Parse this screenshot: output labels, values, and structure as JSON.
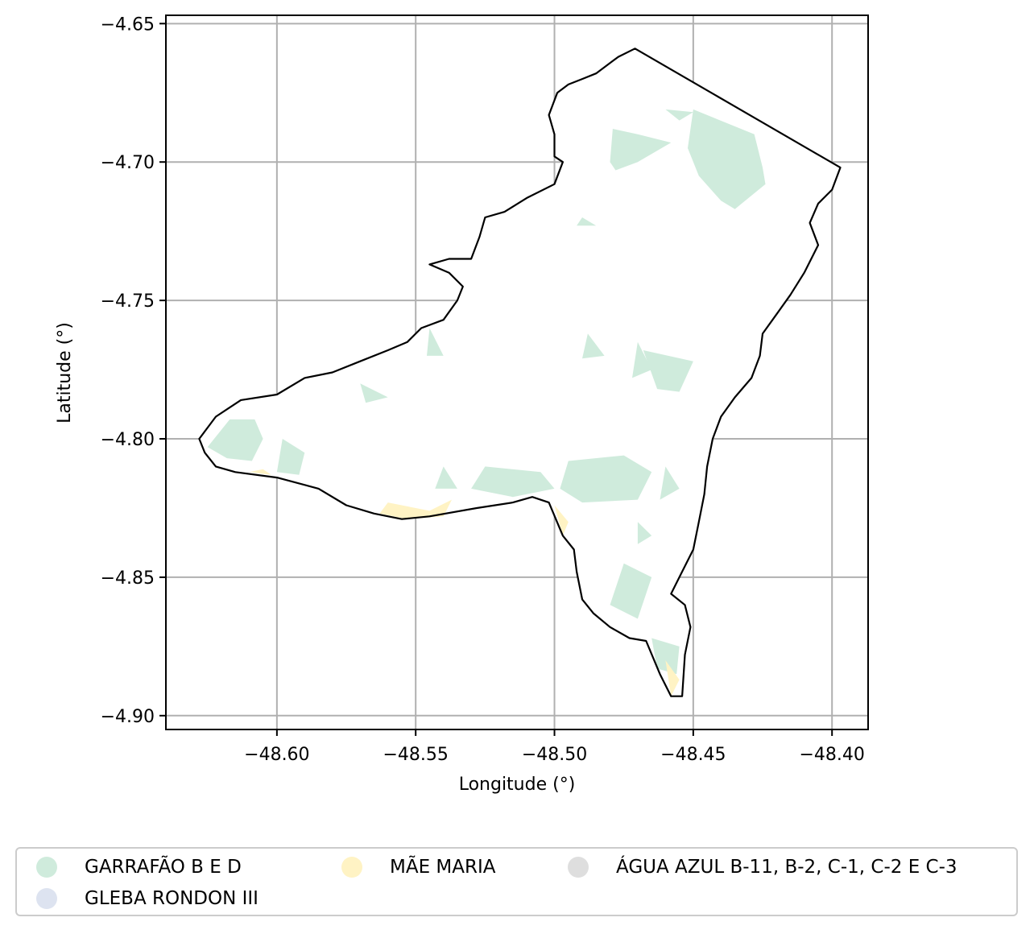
{
  "chart_data": {
    "type": "map",
    "xlabel": "Longitude (°)",
    "ylabel": "Latitude (°)",
    "xlim": [
      -48.64,
      -48.387
    ],
    "ylim": [
      -4.905,
      -4.647
    ],
    "grid": true,
    "x_ticks": [
      {
        "value": -48.6,
        "label": "−48.60"
      },
      {
        "value": -48.55,
        "label": "−48.55"
      },
      {
        "value": -48.5,
        "label": "−48.50"
      },
      {
        "value": -48.45,
        "label": "−48.45"
      },
      {
        "value": -48.4,
        "label": "−48.40"
      }
    ],
    "y_ticks": [
      {
        "value": -4.65,
        "label": "−4.65"
      },
      {
        "value": -4.7,
        "label": "−4.70"
      },
      {
        "value": -4.75,
        "label": "−4.75"
      },
      {
        "value": -4.8,
        "label": "−4.80"
      },
      {
        "value": -4.85,
        "label": "−4.85"
      },
      {
        "value": -4.9,
        "label": "−4.90"
      }
    ],
    "boundary": [
      [
        -48.628,
        -4.8
      ],
      [
        -48.622,
        -4.792
      ],
      [
        -48.613,
        -4.786
      ],
      [
        -48.6,
        -4.784
      ],
      [
        -48.59,
        -4.778
      ],
      [
        -48.58,
        -4.776
      ],
      [
        -48.57,
        -4.772
      ],
      [
        -48.56,
        -4.768
      ],
      [
        -48.553,
        -4.765
      ],
      [
        -48.548,
        -4.76
      ],
      [
        -48.54,
        -4.757
      ],
      [
        -48.535,
        -4.75
      ],
      [
        -48.533,
        -4.745
      ],
      [
        -48.538,
        -4.74
      ],
      [
        -48.545,
        -4.737
      ],
      [
        -48.538,
        -4.735
      ],
      [
        -48.53,
        -4.735
      ],
      [
        -48.527,
        -4.727
      ],
      [
        -48.525,
        -4.72
      ],
      [
        -48.518,
        -4.718
      ],
      [
        -48.51,
        -4.713
      ],
      [
        -48.5,
        -4.708
      ],
      [
        -48.497,
        -4.7
      ],
      [
        -48.5,
        -4.698
      ],
      [
        -48.5,
        -4.69
      ],
      [
        -48.502,
        -4.683
      ],
      [
        -48.499,
        -4.675
      ],
      [
        -48.495,
        -4.672
      ],
      [
        -48.49,
        -4.67
      ],
      [
        -48.485,
        -4.668
      ],
      [
        -48.481,
        -4.665
      ],
      [
        -48.477,
        -4.662
      ],
      [
        -48.471,
        -4.659
      ],
      [
        -48.397,
        -4.702
      ],
      [
        -48.4,
        -4.71
      ],
      [
        -48.405,
        -4.715
      ],
      [
        -48.408,
        -4.722
      ],
      [
        -48.405,
        -4.73
      ],
      [
        -48.41,
        -4.74
      ],
      [
        -48.415,
        -4.748
      ],
      [
        -48.42,
        -4.755
      ],
      [
        -48.425,
        -4.762
      ],
      [
        -48.426,
        -4.77
      ],
      [
        -48.429,
        -4.778
      ],
      [
        -48.435,
        -4.785
      ],
      [
        -48.44,
        -4.792
      ],
      [
        -48.443,
        -4.8
      ],
      [
        -48.445,
        -4.81
      ],
      [
        -48.446,
        -4.82
      ],
      [
        -48.448,
        -4.83
      ],
      [
        -48.45,
        -4.84
      ],
      [
        -48.455,
        -4.85
      ],
      [
        -48.458,
        -4.856
      ],
      [
        -48.453,
        -4.86
      ],
      [
        -48.451,
        -4.868
      ],
      [
        -48.453,
        -4.878
      ],
      [
        -48.454,
        -4.893
      ],
      [
        -48.458,
        -4.893
      ],
      [
        -48.462,
        -4.885
      ],
      [
        -48.467,
        -4.873
      ],
      [
        -48.473,
        -4.872
      ],
      [
        -48.48,
        -4.868
      ],
      [
        -48.486,
        -4.863
      ],
      [
        -48.49,
        -4.858
      ],
      [
        -48.492,
        -4.848
      ],
      [
        -48.493,
        -4.84
      ],
      [
        -48.497,
        -4.835
      ],
      [
        -48.502,
        -4.823
      ],
      [
        -48.508,
        -4.821
      ],
      [
        -48.515,
        -4.823
      ],
      [
        -48.528,
        -4.825
      ],
      [
        -48.545,
        -4.828
      ],
      [
        -48.555,
        -4.829
      ],
      [
        -48.565,
        -4.827
      ],
      [
        -48.575,
        -4.824
      ],
      [
        -48.585,
        -4.818
      ],
      [
        -48.6,
        -4.814
      ],
      [
        -48.615,
        -4.812
      ],
      [
        -48.622,
        -4.81
      ],
      [
        -48.626,
        -4.805
      ]
    ],
    "regions": [
      {
        "name": "GARRAFÃO B E D",
        "color": "#cfebdc",
        "polygons": [
          [
            [
              -48.45,
              -4.681
            ],
            [
              -48.428,
              -4.69
            ],
            [
              -48.425,
              -4.702
            ],
            [
              -48.424,
              -4.708
            ],
            [
              -48.435,
              -4.717
            ],
            [
              -48.44,
              -4.714
            ],
            [
              -48.448,
              -4.705
            ],
            [
              -48.452,
              -4.695
            ]
          ],
          [
            [
              -48.479,
              -4.688
            ],
            [
              -48.47,
              -4.69
            ],
            [
              -48.458,
              -4.693
            ],
            [
              -48.47,
              -4.7
            ],
            [
              -48.478,
              -4.703
            ],
            [
              -48.48,
              -4.7
            ]
          ],
          [
            [
              -48.46,
              -4.681
            ],
            [
              -48.455,
              -4.685
            ],
            [
              -48.45,
              -4.682
            ]
          ],
          [
            [
              -48.617,
              -4.793
            ],
            [
              -48.608,
              -4.793
            ],
            [
              -48.605,
              -4.8
            ],
            [
              -48.609,
              -4.808
            ],
            [
              -48.618,
              -4.807
            ],
            [
              -48.625,
              -4.803
            ]
          ],
          [
            [
              -48.598,
              -4.8
            ],
            [
              -48.59,
              -4.805
            ],
            [
              -48.592,
              -4.813
            ],
            [
              -48.6,
              -4.812
            ]
          ],
          [
            [
              -48.525,
              -4.81
            ],
            [
              -48.505,
              -4.812
            ],
            [
              -48.5,
              -4.818
            ],
            [
              -48.515,
              -4.821
            ],
            [
              -48.53,
              -4.818
            ]
          ],
          [
            [
              -48.54,
              -4.81
            ],
            [
              -48.535,
              -4.818
            ],
            [
              -48.543,
              -4.818
            ]
          ],
          [
            [
              -48.495,
              -4.808
            ],
            [
              -48.475,
              -4.806
            ],
            [
              -48.465,
              -4.812
            ],
            [
              -48.47,
              -4.822
            ],
            [
              -48.49,
              -4.823
            ],
            [
              -48.498,
              -4.818
            ]
          ],
          [
            [
              -48.46,
              -4.81
            ],
            [
              -48.455,
              -4.818
            ],
            [
              -48.462,
              -4.822
            ]
          ],
          [
            [
              -48.468,
              -4.768
            ],
            [
              -48.45,
              -4.772
            ],
            [
              -48.455,
              -4.783
            ],
            [
              -48.463,
              -4.782
            ]
          ],
          [
            [
              -48.47,
              -4.765
            ],
            [
              -48.465,
              -4.775
            ],
            [
              -48.472,
              -4.778
            ]
          ],
          [
            [
              -48.488,
              -4.762
            ],
            [
              -48.482,
              -4.77
            ],
            [
              -48.49,
              -4.771
            ]
          ],
          [
            [
              -48.545,
              -4.76
            ],
            [
              -48.54,
              -4.77
            ],
            [
              -48.546,
              -4.77
            ]
          ],
          [
            [
              -48.57,
              -4.78
            ],
            [
              -48.56,
              -4.785
            ],
            [
              -48.568,
              -4.787
            ]
          ],
          [
            [
              -48.475,
              -4.845
            ],
            [
              -48.465,
              -4.85
            ],
            [
              -48.47,
              -4.865
            ],
            [
              -48.48,
              -4.86
            ]
          ],
          [
            [
              -48.47,
              -4.83
            ],
            [
              -48.465,
              -4.835
            ],
            [
              -48.47,
              -4.838
            ]
          ],
          [
            [
              -48.465,
              -4.872
            ],
            [
              -48.455,
              -4.875
            ],
            [
              -48.456,
              -4.885
            ],
            [
              -48.463,
              -4.883
            ]
          ],
          [
            [
              -48.49,
              -4.72
            ],
            [
              -48.485,
              -4.723
            ],
            [
              -48.492,
              -4.723
            ]
          ]
        ]
      },
      {
        "name": "GLEBA RONDON III",
        "color": "#dde3f0",
        "polygons": []
      },
      {
        "name": "MÃE MARIA",
        "color": "#fff3c4",
        "polygons": [
          [
            [
              -48.56,
              -4.823
            ],
            [
              -48.545,
              -4.826
            ],
            [
              -48.537,
              -4.822
            ],
            [
              -48.54,
              -4.828
            ],
            [
              -48.553,
              -4.829
            ],
            [
              -48.563,
              -4.827
            ]
          ],
          [
            [
              -48.5,
              -4.824
            ],
            [
              -48.495,
              -4.83
            ],
            [
              -48.497,
              -4.835
            ]
          ],
          [
            [
              -48.46,
              -4.88
            ],
            [
              -48.455,
              -4.887
            ],
            [
              -48.458,
              -4.893
            ]
          ],
          [
            [
              -48.61,
              -4.812
            ],
            [
              -48.605,
              -4.811
            ],
            [
              -48.602,
              -4.813
            ]
          ]
        ]
      },
      {
        "name": "ÁGUA AZUL B-11, B-2, C-1, C-2 E C-3",
        "color": "#dedede",
        "polygons": []
      }
    ]
  },
  "legend": {
    "items": [
      {
        "label": "GARRAFÃO B E D",
        "color": "#cfebdc"
      },
      {
        "label": "GLEBA RONDON III",
        "color": "#dde3f0"
      },
      {
        "label": "MÃE MARIA",
        "color": "#fff3c4"
      },
      {
        "label": "ÁGUA AZUL B-11, B-2, C-1, C-2 E C-3",
        "color": "#dedede"
      }
    ]
  }
}
